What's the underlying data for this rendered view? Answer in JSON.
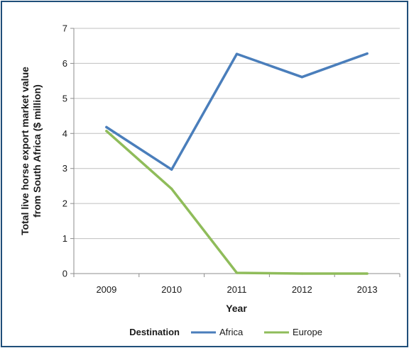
{
  "chart_data": {
    "type": "line",
    "title": "",
    "xlabel": "Year",
    "ylabel_lines": [
      "Total live horse export  market value",
      "from South Africa ($ million)"
    ],
    "categories": [
      "2009",
      "2010",
      "2011",
      "2012",
      "2013"
    ],
    "ylim": [
      0,
      7
    ],
    "yticks": [
      0,
      1,
      2,
      3,
      4,
      5,
      6,
      7
    ],
    "grid": true,
    "legend": {
      "position": "bottom",
      "title": "Destination"
    },
    "series": [
      {
        "name": "Africa",
        "color": "#4a7ebb",
        "values": [
          4.18,
          2.97,
          6.27,
          5.61,
          6.28
        ]
      },
      {
        "name": "Europe",
        "color": "#8fbc5a",
        "values": [
          4.07,
          2.42,
          0.02,
          0.0,
          0.0
        ]
      }
    ]
  }
}
